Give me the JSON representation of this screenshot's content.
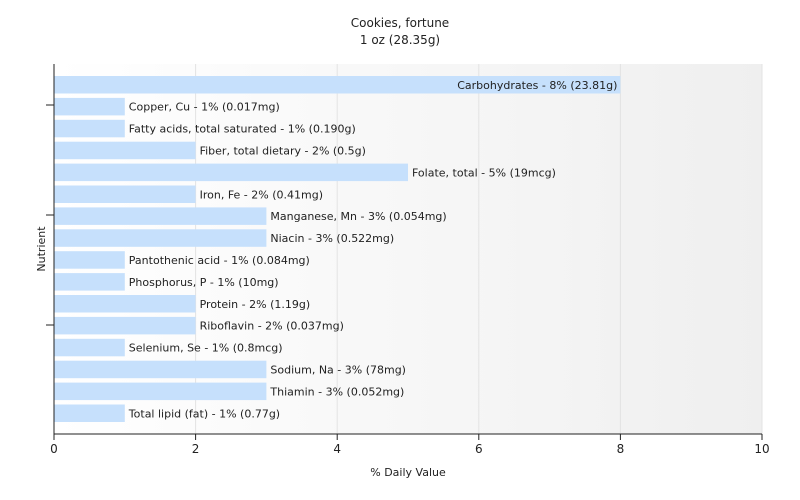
{
  "chart_data": {
    "type": "bar",
    "orientation": "horizontal",
    "title": "Cookies, fortune",
    "subtitle": "1 oz (28.35g)",
    "xlabel": "% Daily Value",
    "ylabel": "Nutrient",
    "xlim": [
      0,
      10
    ],
    "xticks": [
      0,
      2,
      4,
      6,
      8,
      10
    ],
    "grid": true,
    "bar_color": "#c6e0fc",
    "categories": [
      "Carbohydrates",
      "Copper, Cu",
      "Fatty acids, total saturated",
      "Fiber, total dietary",
      "Folate, total",
      "Iron, Fe",
      "Manganese, Mn",
      "Niacin",
      "Pantothenic acid",
      "Phosphorus, P",
      "Protein",
      "Riboflavin",
      "Selenium, Se",
      "Sodium, Na",
      "Thiamin",
      "Total lipid (fat)"
    ],
    "values": [
      8,
      1,
      1,
      2,
      5,
      2,
      3,
      3,
      1,
      1,
      2,
      2,
      1,
      3,
      3,
      1
    ],
    "labels": [
      "Carbohydrates - 8% (23.81g)",
      "Copper, Cu - 1% (0.017mg)",
      "Fatty acids, total saturated - 1% (0.190g)",
      "Fiber, total dietary - 2% (0.5g)",
      "Folate, total - 5% (19mcg)",
      "Iron, Fe - 2% (0.41mg)",
      "Manganese, Mn - 3% (0.054mg)",
      "Niacin - 3% (0.522mg)",
      "Pantothenic acid - 1% (0.084mg)",
      "Phosphorus, P - 1% (10mg)",
      "Protein - 2% (1.19g)",
      "Riboflavin - 2% (0.037mg)",
      "Selenium, Se - 1% (0.8mcg)",
      "Sodium, Na - 3% (78mg)",
      "Thiamin - 3% (0.052mg)",
      "Total lipid (fat) - 1% (0.77g)"
    ]
  }
}
